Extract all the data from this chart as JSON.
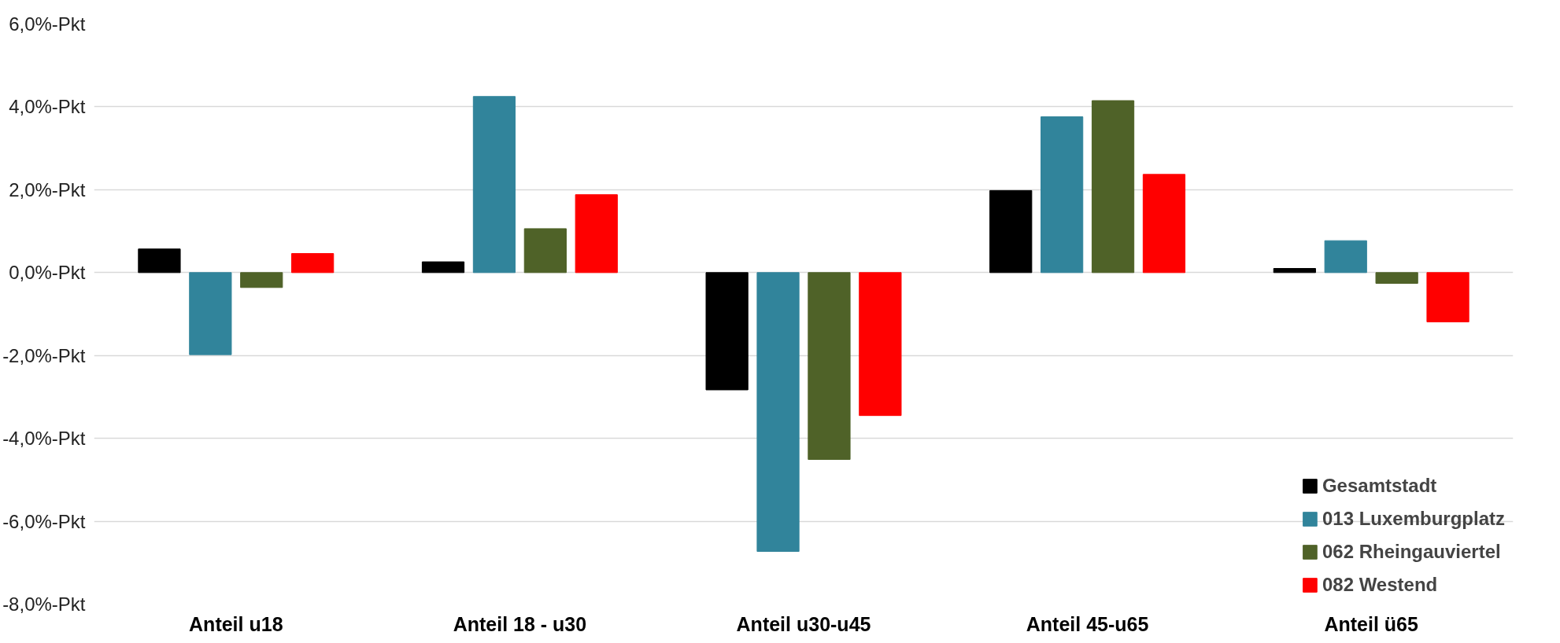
{
  "chart_data": {
    "type": "bar",
    "categories": [
      "Anteil u18",
      "Anteil 18 - u30",
      "Anteil u30-u45",
      "Anteil 45-u65",
      "Anteil ü65"
    ],
    "series": [
      {
        "name": "Gesamtstadt",
        "color": "#000000",
        "values": [
          0.57,
          0.26,
          -2.83,
          1.98,
          0.1
        ]
      },
      {
        "name": "013 Luxemburgplatz",
        "color": "#31849b",
        "values": [
          -1.98,
          4.25,
          -6.73,
          3.76,
          0.77
        ]
      },
      {
        "name": "062 Rheingauviertel",
        "color": "#4f6228",
        "values": [
          -0.36,
          1.06,
          -4.51,
          4.15,
          -0.26
        ]
      },
      {
        "name": "082 Westend",
        "color": "#ff0000",
        "values": [
          0.46,
          1.88,
          -3.45,
          2.37,
          -1.19
        ]
      }
    ],
    "ylim": [
      -8,
      6
    ],
    "yticks": [
      {
        "value": -8,
        "label": "-8,0%-Pkt"
      },
      {
        "value": -6,
        "label": "-6,0%-Pkt"
      },
      {
        "value": -4,
        "label": "-4,0%-Pkt"
      },
      {
        "value": -2,
        "label": "-2,0%-Pkt"
      },
      {
        "value": 0,
        "label": "0,0%-Pkt"
      },
      {
        "value": 2,
        "label": "2,0%-Pkt"
      },
      {
        "value": 4,
        "label": "4,0%-Pkt"
      },
      {
        "value": 6,
        "label": "6,0%-Pkt"
      }
    ],
    "grid": "y",
    "legend": "bottom right"
  }
}
